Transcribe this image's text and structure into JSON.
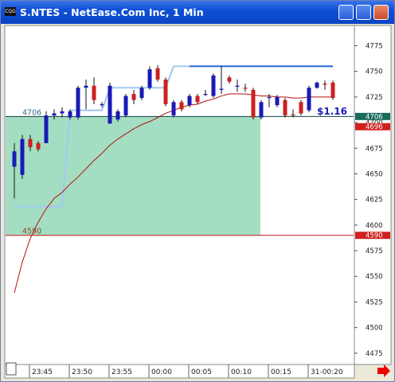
{
  "window": {
    "title": "S.NTES - NetEase.Com Inc, 1 Min"
  },
  "chart_data": {
    "type": "candlestick",
    "categories": [
      null,
      null,
      "23:45",
      null,
      null,
      null,
      null,
      "23:50",
      null,
      null,
      null,
      null,
      "23:55",
      null,
      null,
      null,
      null,
      "00:00",
      null,
      null,
      null,
      null,
      "00:05",
      null,
      null,
      null,
      null,
      "00:10",
      null,
      null,
      null,
      null,
      "00:15",
      null,
      null,
      null,
      null,
      "31-00:20",
      null,
      null,
      null
    ],
    "open": [
      4657,
      4649,
      4684,
      4680,
      4680,
      4707,
      4709,
      4705,
      4705,
      4734,
      4736,
      4717,
      4699,
      4703,
      4707,
      4728,
      4724,
      4734,
      4753,
      4742,
      4707,
      4720,
      4717,
      4726,
      4727,
      4726,
      4732,
      4744,
      4735,
      4734,
      4732,
      4705,
      4724,
      4717,
      4722,
      4708,
      4720,
      4712,
      4734,
      4738,
      4739
    ],
    "high": [
      4680,
      4688,
      4688,
      4682,
      4711,
      4713,
      4715,
      4713,
      4736,
      4742,
      4744,
      4720,
      4739,
      4713,
      4728,
      4732,
      4736,
      4755,
      4756,
      4744,
      4722,
      4722,
      4728,
      4728,
      4732,
      4748,
      4755,
      4746,
      4742,
      4738,
      4734,
      4722,
      4728,
      4727,
      4724,
      4713,
      4722,
      4736,
      4740,
      4741,
      4741
    ],
    "low": [
      4626,
      4645,
      4672,
      4672,
      4680,
      4703,
      4705,
      4703,
      4703,
      4713,
      4718,
      4715,
      4699,
      4701,
      4705,
      4718,
      4722,
      4732,
      4740,
      4716,
      4705,
      4711,
      4715,
      4718,
      4726,
      4724,
      4728,
      4738,
      4730,
      4730,
      4703,
      4703,
      4715,
      4715,
      4705,
      4705,
      4707,
      4710,
      4733,
      4732,
      4722
    ],
    "close": [
      4672,
      4684,
      4676,
      4674,
      4707,
      4709,
      4711,
      4711,
      4734,
      4736,
      4722,
      4718,
      4736,
      4711,
      4726,
      4722,
      4734,
      4752,
      4742,
      4718,
      4720,
      4713,
      4726,
      4720,
      4728,
      4746,
      4733,
      4740,
      4736,
      4733,
      4705,
      4720,
      4725,
      4725,
      4707,
      4707,
      4709,
      4734,
      4739,
      4737,
      4724
    ],
    "up_color": "#1a1ab8",
    "down_color": "#cc2020",
    "series": [
      {
        "color": "#a0c8f0",
        "values": [
          4618,
          4618,
          4618,
          4618,
          4618,
          4618,
          4618,
          4712,
          4712,
          4712,
          4712,
          4712,
          4734,
          4734,
          4734,
          4734,
          4734,
          4734,
          4734,
          4734,
          4755,
          4755,
          4755,
          4755,
          4755,
          4755,
          4755,
          4755,
          4755,
          4755,
          4755,
          4755,
          4755,
          4755,
          4755,
          4755,
          4755,
          4755,
          4755,
          4755,
          4755
        ]
      },
      {
        "color": "#2a6fd0",
        "values": [
          null,
          null,
          null,
          null,
          null,
          null,
          null,
          null,
          null,
          null,
          null,
          null,
          null,
          null,
          null,
          null,
          null,
          null,
          null,
          null,
          null,
          null,
          4755,
          4755,
          4755,
          4755,
          4755,
          4755,
          4755,
          4755,
          4755,
          4755,
          4755,
          4755,
          4755,
          4755,
          4755,
          4755,
          4755,
          4755,
          4755
        ]
      },
      {
        "color": "#b01010",
        "values": [
          4534,
          4564,
          4587,
          4603,
          4616,
          4626,
          4632,
          4640,
          4647,
          4655,
          4663,
          4670,
          4678,
          4684,
          4689,
          4694,
          4698,
          4701,
          4705,
          4709,
          4712,
          4715,
          4717,
          4718,
          4721,
          4723,
          4726,
          4728,
          4728,
          4728,
          4727,
          4726,
          4726,
          4725,
          4725,
          4724,
          4724,
          4725,
          4725,
          4725,
          4725
        ]
      }
    ],
    "zone": {
      "low": 4590,
      "high": 4706,
      "color": "#9fdcbf"
    },
    "levels": [
      {
        "value": 4706,
        "color": "#104040",
        "label_color": "#3a6a8a"
      },
      {
        "value": 4590,
        "color": "#c01818",
        "label_color": "#8a4a2a"
      }
    ],
    "price_tags": [
      {
        "value": 4706,
        "color": "#1a6a5a"
      },
      {
        "value": 4696,
        "color": "#d02020"
      },
      {
        "value": 4590,
        "color": "#d02020"
      }
    ],
    "annotation": "$1.16",
    "ylim": [
      4464,
      4794
    ],
    "yticks": [
      4475,
      4500,
      4525,
      4550,
      4575,
      4600,
      4625,
      4650,
      4675,
      4700,
      4725,
      4750,
      4775
    ]
  }
}
